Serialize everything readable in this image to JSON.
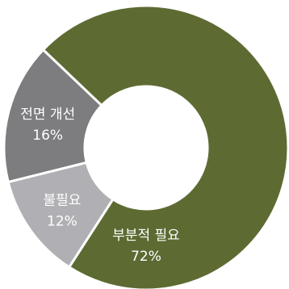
{
  "chart_data": {
    "type": "pie",
    "style": "donut",
    "slices": [
      {
        "label": "전면 개선",
        "value": 16,
        "value_label": "16%",
        "color": "#7d7c7e"
      },
      {
        "label": "부분적 필요",
        "value": 72,
        "value_label": "72%",
        "color": "#5d6b33"
      },
      {
        "label": "불필요",
        "value": 12,
        "value_label": "12%",
        "color": "#b0b0b4"
      }
    ],
    "title": "",
    "legend": "none"
  }
}
